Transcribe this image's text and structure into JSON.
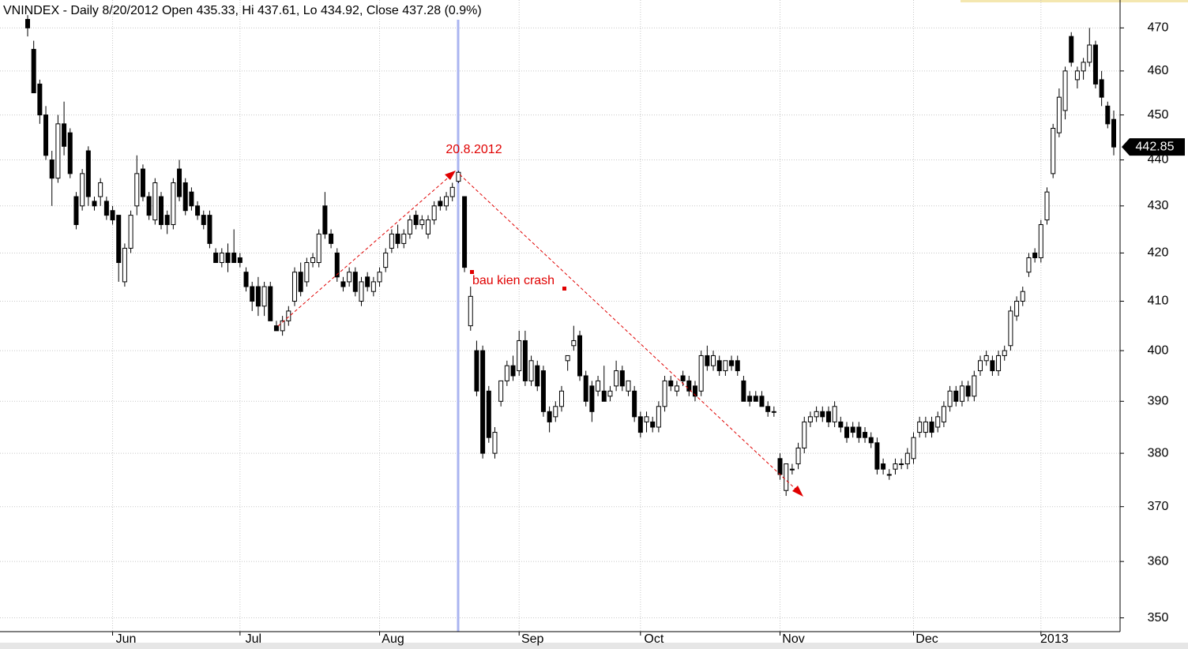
{
  "chart_data": {
    "type": "candlestick",
    "title": "VNINDEX - Daily 8/20/2012 Open 435.33, Hi 437.61, Lo 434.92, Close 437.28 (0.9%)",
    "annotations": [
      "20.8.2012",
      "bau kien crash"
    ],
    "log": true,
    "grid": true,
    "up_color": "#ffffff",
    "down_color": "#000000",
    "ylim": [
      347.6,
      476.6
    ],
    "yticks": [
      350,
      360,
      370,
      380,
      390,
      400,
      410,
      420,
      430,
      440,
      450,
      460,
      470
    ],
    "categories": [
      null,
      null,
      null,
      null,
      null,
      null,
      null,
      null,
      null,
      null,
      null,
      null,
      null,
      null,
      "Jun",
      null,
      null,
      null,
      null,
      null,
      null,
      null,
      null,
      null,
      null,
      null,
      null,
      null,
      null,
      null,
      null,
      null,
      null,
      null,
      null,
      "Jul",
      null,
      null,
      null,
      null,
      null,
      null,
      null,
      null,
      null,
      null,
      null,
      null,
      null,
      null,
      null,
      null,
      null,
      null,
      null,
      null,
      null,
      null,
      "Aug",
      null,
      null,
      null,
      null,
      null,
      null,
      null,
      null,
      null,
      null,
      null,
      null,
      null,
      null,
      null,
      null,
      null,
      null,
      null,
      null,
      null,
      null,
      "Sep",
      null,
      null,
      null,
      null,
      null,
      null,
      null,
      null,
      null,
      null,
      null,
      null,
      null,
      null,
      null,
      null,
      null,
      null,
      null,
      "Oct",
      null,
      null,
      null,
      null,
      null,
      null,
      null,
      null,
      null,
      null,
      null,
      null,
      null,
      null,
      null,
      null,
      null,
      null,
      null,
      null,
      null,
      null,
      "Nov",
      null,
      null,
      null,
      null,
      null,
      null,
      null,
      null,
      null,
      null,
      null,
      null,
      null,
      null,
      null,
      null,
      null,
      null,
      null,
      null,
      null,
      "Dec",
      null,
      null,
      null,
      null,
      null,
      null,
      null,
      null,
      null,
      null,
      null,
      null,
      null,
      null,
      null,
      null,
      null,
      null,
      null,
      null,
      "2013",
      null,
      null,
      null,
      null,
      null,
      null,
      null,
      null,
      null,
      null,
      null,
      null
    ],
    "values": [
      [
        472,
        473,
        468,
        470
      ],
      [
        465,
        467,
        455,
        455
      ],
      [
        457,
        458,
        448,
        450
      ],
      [
        450,
        452,
        440,
        441
      ],
      [
        440,
        442,
        430,
        436
      ],
      [
        436,
        450,
        435,
        448
      ],
      [
        448,
        453,
        441,
        443
      ],
      [
        446,
        447,
        436,
        437
      ],
      [
        432,
        433,
        425,
        426
      ],
      [
        430,
        438,
        429,
        437
      ],
      [
        442,
        443,
        430,
        432
      ],
      [
        431,
        432,
        429,
        430
      ],
      [
        432,
        436,
        430,
        435
      ],
      [
        431,
        432,
        427,
        428
      ],
      [
        429,
        430,
        426,
        427
      ],
      [
        428,
        428,
        414,
        418
      ],
      [
        414,
        422,
        413,
        421
      ],
      [
        421,
        429,
        420,
        428
      ],
      [
        430,
        441,
        428,
        437
      ],
      [
        438,
        439,
        431,
        432
      ],
      [
        432,
        433,
        427,
        428
      ],
      [
        427,
        436,
        426,
        435
      ],
      [
        432,
        433,
        425,
        426
      ],
      [
        428,
        429,
        424,
        426
      ],
      [
        426,
        436,
        425,
        435
      ],
      [
        438,
        440,
        431,
        432
      ],
      [
        435,
        436,
        428,
        429
      ],
      [
        433,
        434,
        429,
        430
      ],
      [
        430,
        431,
        427,
        428
      ],
      [
        428,
        429,
        425,
        426
      ],
      [
        428,
        429,
        421,
        422
      ],
      [
        420,
        421,
        418,
        418
      ],
      [
        418,
        421,
        417,
        420
      ],
      [
        420,
        422,
        416,
        418
      ],
      [
        420,
        425,
        418,
        418
      ],
      [
        419,
        420,
        417,
        418
      ],
      [
        416,
        417,
        412,
        413
      ],
      [
        413,
        414,
        408,
        410
      ],
      [
        413,
        415,
        407,
        409
      ],
      [
        409,
        414,
        407,
        413
      ],
      [
        413,
        414,
        406,
        406
      ],
      [
        405,
        406,
        404,
        404
      ],
      [
        404,
        407,
        403,
        406
      ],
      [
        406,
        409,
        405,
        408
      ],
      [
        410,
        417,
        409,
        416
      ],
      [
        416,
        418,
        411,
        412
      ],
      [
        414,
        419,
        413,
        418
      ],
      [
        418,
        420,
        417,
        419
      ],
      [
        418,
        425,
        417,
        424
      ],
      [
        430,
        433,
        423,
        424
      ],
      [
        424,
        425,
        421,
        422
      ],
      [
        420,
        421,
        414,
        415
      ],
      [
        414,
        415,
        412,
        413
      ],
      [
        414,
        417,
        413,
        416
      ],
      [
        416,
        417,
        411,
        412
      ],
      [
        410,
        415,
        409,
        414
      ],
      [
        415,
        416,
        412,
        413
      ],
      [
        412,
        415,
        411,
        414
      ],
      [
        414,
        417,
        413,
        416
      ],
      [
        417,
        421,
        416,
        420
      ],
      [
        421,
        425,
        420,
        424
      ],
      [
        424,
        426,
        421,
        422
      ],
      [
        422,
        425,
        421,
        424
      ],
      [
        424,
        428,
        423,
        427
      ],
      [
        428,
        429,
        425,
        426
      ],
      [
        426,
        428,
        425,
        427
      ],
      [
        424,
        428,
        423,
        427
      ],
      [
        427,
        431,
        426,
        430
      ],
      [
        431,
        432,
        429,
        430
      ],
      [
        430,
        433,
        429,
        432
      ],
      [
        432,
        435,
        431,
        434
      ],
      [
        435.33,
        437.61,
        434.92,
        437.28
      ],
      [
        432,
        432,
        416,
        417
      ],
      [
        405,
        413,
        404,
        411
      ],
      [
        400,
        402,
        391,
        392
      ],
      [
        400,
        401,
        379,
        380
      ],
      [
        392,
        393,
        382,
        383
      ],
      [
        380,
        385,
        379,
        384
      ],
      [
        390,
        394,
        389,
        394
      ],
      [
        394,
        398,
        393,
        397
      ],
      [
        397,
        399,
        394,
        395
      ],
      [
        396,
        404,
        395,
        402
      ],
      [
        402,
        404,
        393,
        394
      ],
      [
        394,
        399,
        393,
        398
      ],
      [
        397,
        398,
        392,
        393
      ],
      [
        396,
        397,
        387,
        388
      ],
      [
        388,
        389,
        384,
        386
      ],
      [
        387,
        390,
        386,
        389
      ],
      [
        389,
        393,
        388,
        392
      ],
      [
        398,
        399,
        396,
        399
      ],
      [
        401,
        405,
        400,
        402
      ],
      [
        403,
        404,
        394,
        395
      ],
      [
        395,
        396,
        389,
        390
      ],
      [
        393,
        394,
        386,
        388
      ],
      [
        392,
        395,
        391,
        394
      ],
      [
        392,
        397,
        391,
        390
      ],
      [
        391,
        393,
        390,
        392
      ],
      [
        393,
        398,
        392,
        396
      ],
      [
        396,
        397,
        392,
        393
      ],
      [
        392,
        394,
        391,
        394
      ],
      [
        392,
        393,
        386,
        387
      ],
      [
        387,
        388,
        383,
        384
      ],
      [
        386,
        388,
        384,
        387
      ],
      [
        386,
        387,
        384,
        385
      ],
      [
        385,
        390,
        384,
        389
      ],
      [
        389,
        395,
        388,
        394
      ],
      [
        394,
        395,
        392,
        393
      ],
      [
        392,
        394,
        391,
        393
      ],
      [
        395,
        396,
        393,
        394
      ],
      [
        394,
        395,
        391,
        392
      ],
      [
        393,
        394,
        390,
        391
      ],
      [
        392,
        400,
        391,
        399
      ],
      [
        399,
        401,
        396,
        397
      ],
      [
        397,
        400,
        396,
        399
      ],
      [
        398,
        399,
        395,
        396
      ],
      [
        396,
        398,
        395,
        398
      ],
      [
        398,
        399,
        396,
        397
      ],
      [
        398,
        399,
        395,
        396
      ],
      [
        394,
        395,
        390,
        390
      ],
      [
        391,
        392,
        389,
        390
      ],
      [
        391,
        392,
        390,
        390
      ],
      [
        391,
        392,
        389,
        389
      ],
      [
        389,
        390,
        387,
        388
      ],
      [
        388,
        389,
        387,
        388
      ],
      [
        379,
        380,
        375,
        376
      ],
      [
        373,
        378,
        372,
        378
      ],
      [
        377,
        378,
        376,
        377
      ],
      [
        378,
        382,
        377,
        381
      ],
      [
        381,
        387,
        380,
        386
      ],
      [
        386,
        388,
        385,
        387
      ],
      [
        387,
        389,
        386,
        388
      ],
      [
        388,
        389,
        386,
        387
      ],
      [
        388,
        389,
        385,
        386
      ],
      [
        386,
        390,
        385,
        389
      ],
      [
        386,
        387,
        384,
        385
      ],
      [
        385,
        386,
        382,
        383
      ],
      [
        385,
        386,
        383,
        384
      ],
      [
        385,
        386,
        382,
        383
      ],
      [
        384,
        385,
        382,
        383
      ],
      [
        383,
        384,
        381,
        382
      ],
      [
        382,
        383,
        376,
        377
      ],
      [
        378,
        379,
        376,
        377
      ],
      [
        376,
        377,
        375,
        376
      ],
      [
        377,
        379,
        376,
        378
      ],
      [
        378,
        379,
        377,
        378
      ],
      [
        378,
        381,
        377,
        380
      ],
      [
        379,
        384,
        378,
        383
      ],
      [
        384,
        387,
        383,
        386
      ],
      [
        384,
        387,
        383,
        386
      ],
      [
        386,
        387,
        383,
        384
      ],
      [
        385,
        388,
        384,
        387
      ],
      [
        386,
        390,
        385,
        389
      ],
      [
        389,
        393,
        388,
        392
      ],
      [
        392,
        393,
        389,
        390
      ],
      [
        390,
        394,
        389,
        393
      ],
      [
        393,
        394,
        390,
        391
      ],
      [
        391,
        396,
        390,
        395
      ],
      [
        396,
        399,
        395,
        398
      ],
      [
        398,
        400,
        397,
        399
      ],
      [
        398,
        399,
        395,
        396
      ],
      [
        396,
        400,
        395,
        399
      ],
      [
        399,
        401,
        398,
        400
      ],
      [
        401,
        409,
        400,
        408
      ],
      [
        407,
        411,
        406,
        410
      ],
      [
        410,
        413,
        409,
        412
      ],
      [
        416,
        420,
        415,
        419
      ],
      [
        420,
        421,
        418,
        419
      ],
      [
        419,
        427,
        418,
        426
      ],
      [
        427,
        434,
        426,
        433
      ],
      [
        437,
        448,
        436,
        447
      ],
      [
        446,
        456,
        445,
        454
      ],
      [
        451,
        461,
        449,
        460
      ],
      [
        468,
        469,
        461,
        462
      ],
      [
        458,
        461,
        456,
        460
      ],
      [
        460,
        463,
        458,
        462
      ],
      [
        462,
        470,
        461,
        466
      ],
      [
        466,
        467,
        456,
        457
      ],
      [
        458,
        460,
        452,
        454
      ],
      [
        452,
        453,
        447,
        448
      ],
      [
        449,
        451,
        441,
        442.85
      ]
    ]
  }
}
